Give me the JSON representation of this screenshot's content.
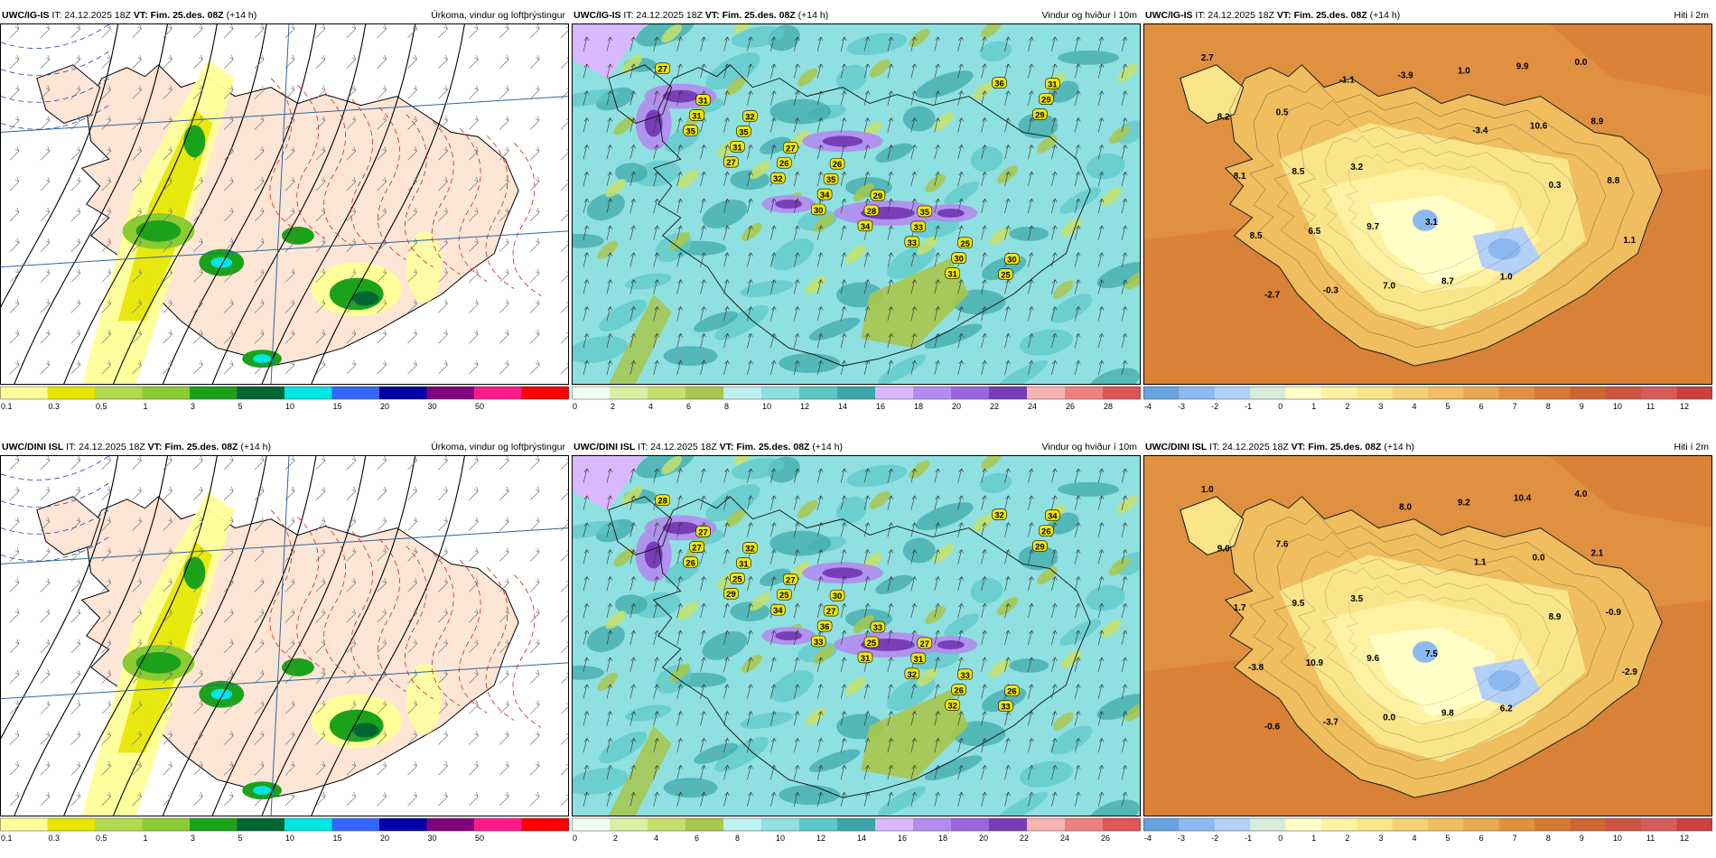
{
  "panels": [
    {
      "id": "r1c1",
      "header": {
        "model": "UWC/IG-IS",
        "it_label": "IT: 24.12.2025 18Z",
        "vt_label": "VT:",
        "vt_value": "Fim. 25.des. 08Z",
        "lead": "(+14 h)",
        "title": "Úrkoma, vindur og loftþrýstingur"
      },
      "colorbar": {
        "type": "precip",
        "ticks": [
          "0.1",
          "0.3",
          "0.5",
          "1",
          "3",
          "5",
          "10",
          "15",
          "20",
          "30",
          "50"
        ]
      }
    },
    {
      "id": "r1c2",
      "header": {
        "model": "UWC/IG-IS",
        "it_label": "IT: 24.12.2025 18Z",
        "vt_label": "VT:",
        "vt_value": "Fim. 25.des. 08Z",
        "lead": "(+14 h)",
        "title": "Vindur og hviður í 10m"
      },
      "colorbar": {
        "type": "wind",
        "ticks": [
          "0",
          "2",
          "4",
          "6",
          "8",
          "10",
          "12",
          "14",
          "16",
          "18",
          "20",
          "22",
          "24",
          "26",
          "28"
        ]
      },
      "labels": [
        "27",
        "32",
        "26",
        "35",
        "30",
        "31",
        "27",
        "29",
        "25",
        "31",
        "35",
        "35",
        "33",
        "25",
        "31",
        "26",
        "28",
        "30",
        "29",
        "31",
        "34",
        "33",
        "36",
        "35",
        "32",
        "34",
        "31",
        "29",
        "27",
        "30"
      ]
    },
    {
      "id": "r1c3",
      "header": {
        "model": "UWC/IG-IS",
        "it_label": "IT: 24.12.2025 18Z",
        "vt_label": "VT:",
        "vt_value": "Fim. 25.des. 08Z",
        "lead": "(+14 h)",
        "title": "Hiti í 2m"
      },
      "colorbar": {
        "type": "temp",
        "ticks": [
          "-4",
          "-3",
          "-2",
          "-1",
          "0",
          "1",
          "2",
          "3",
          "4",
          "5",
          "6",
          "7",
          "8",
          "9",
          "10",
          "11",
          "12"
        ]
      },
      "labels": [
        "2.7",
        "0.5",
        "3.2",
        "3.1",
        "1.0",
        "0.0",
        "8.2",
        "8.5",
        "9.7",
        "8.7",
        "9.9",
        "8.9",
        "8.1",
        "6.5",
        "7.0",
        "1.0",
        "10.6",
        "8.8",
        "8.5",
        "-0.3",
        "-3.9",
        "-3.4",
        "0.3",
        "1.1",
        "-2.7",
        "-1.1"
      ]
    },
    {
      "id": "r2c1",
      "header": {
        "model": "UWC/DINI ISL",
        "it_label": "IT: 24.12.2025 18Z",
        "vt_label": "VT:",
        "vt_value": "Fim. 25.des. 08Z",
        "lead": "(+14 h)",
        "title": "Úrkoma, vindur og loftþrýstingur"
      },
      "colorbar": {
        "type": "precip",
        "ticks": [
          "0.1",
          "0.3",
          "0.5",
          "1",
          "3",
          "5",
          "10",
          "15",
          "20",
          "30",
          "50"
        ]
      }
    },
    {
      "id": "r2c2",
      "header": {
        "model": "UWC/DINI ISL",
        "it_label": "IT: 24.12.2025 18Z",
        "vt_label": "VT:",
        "vt_value": "Fim. 25.des. 08Z",
        "lead": "(+14 h)",
        "title": "Vindur og hviður í 10m"
      },
      "colorbar": {
        "type": "wind",
        "ticks": [
          "0",
          "2",
          "4",
          "6",
          "8",
          "10",
          "12",
          "14",
          "16",
          "18",
          "20",
          "22",
          "24",
          "26"
        ]
      },
      "labels": [
        "28",
        "32",
        "30",
        "27",
        "26",
        "27",
        "27",
        "33",
        "33",
        "34",
        "31",
        "27",
        "31",
        "33",
        "27",
        "25",
        "25",
        "26",
        "26",
        "25",
        "36",
        "32",
        "32",
        "26",
        "34",
        "31",
        "32",
        "29",
        "29",
        "33"
      ]
    },
    {
      "id": "r2c3",
      "header": {
        "model": "UWC/DINI ISL",
        "it_label": "IT: 24.12.2025 18Z",
        "vt_label": "VT:",
        "vt_value": "Fim. 25.des. 08Z",
        "lead": "(+14 h)",
        "title": "Hiti í 2m"
      },
      "colorbar": {
        "type": "temp",
        "ticks": [
          "-4",
          "-3",
          "-2",
          "-1",
          "0",
          "1",
          "2",
          "3",
          "4",
          "5",
          "6",
          "7",
          "8",
          "9",
          "10",
          "11",
          "12"
        ]
      },
      "labels": [
        "1.0",
        "7.6",
        "3.5",
        "7.5",
        "6.2",
        "4.0",
        "9.0",
        "9.5",
        "9.6",
        "9.8",
        "10.4",
        "2.1",
        "1.7",
        "10.9",
        "0.0",
        "9.2",
        "0.0",
        "-0.9",
        "-3.8",
        "-3.7",
        "8.0",
        "1.1",
        "8.9",
        "-2.9",
        "-0.6"
      ]
    }
  ],
  "colors": {
    "precip": [
      "#ffff99",
      "#e6e600",
      "#b3d94d",
      "#8ccc33",
      "#1aa31a",
      "#006633",
      "#00e5e5",
      "#3366ff",
      "#0000a6",
      "#800080",
      "#ff1a8c",
      "#ff0000"
    ],
    "wind": [
      "#f0fff0",
      "#d9f0a3",
      "#c5e069",
      "#a8c74c",
      "#bdf0f0",
      "#8fe0e0",
      "#5cc7c7",
      "#3aa6a6",
      "#d9b8ff",
      "#b38cf0",
      "#9966e0",
      "#7a3db8",
      "#f7b3b3",
      "#ef8080",
      "#e05555"
    ],
    "temp": [
      "#66a3e0",
      "#8cbaf0",
      "#b3d1f7",
      "#d9ecd9",
      "#ffffc7",
      "#fff2a3",
      "#fae58a",
      "#f5d173",
      "#f0be5e",
      "#e8a84d",
      "#e09140",
      "#d67a33",
      "#cc6633",
      "#cc5540",
      "#d65c5c",
      "#cc4040"
    ]
  }
}
